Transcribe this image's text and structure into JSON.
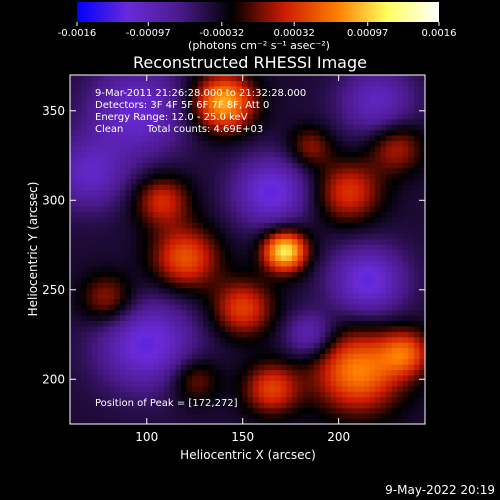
{
  "chart_data": {
    "type": "heatmap",
    "title": "Reconstructed RHESSI Image",
    "xlabel": "Heliocentric X (arcsec)",
    "ylabel": "Heliocentric Y (arcsec)",
    "xlim": [
      60,
      245
    ],
    "ylim": [
      175,
      370
    ],
    "xticks": [
      100,
      150,
      200
    ],
    "yticks": [
      200,
      250,
      300,
      350
    ],
    "grid": false,
    "colorbar": {
      "position": "top",
      "range": [
        -0.0016,
        0.0016
      ],
      "ticks": [
        "-0.0016",
        "-0.00097",
        "-0.00032",
        "0.00032",
        "0.00097",
        "0.0016"
      ],
      "unit": "(photons cm⁻² s⁻¹ asec⁻²)",
      "colormap": [
        "#0000ff",
        "#6a2ad8",
        "#4a1a8a",
        "#000000",
        "#cc1a00",
        "#ff7a00",
        "#ffff60",
        "#ffffff"
      ]
    },
    "annotations": {
      "time": "9-Mar-2011 21:26:28.000 to 21:32:28.000",
      "detectors": "Detectors: 3F 4F 5F 6F 7F 8F, Att 0",
      "energy": "Energy Range: 12.0 - 25.0 keV",
      "method": "Clean",
      "counts": "Total counts: 4.69E+03",
      "peak": "Position of Peak = [172,272]"
    },
    "peak": [
      172,
      272
    ],
    "sources": [
      {
        "x": 172,
        "y": 272,
        "amplitude": 0.00155,
        "sigma": 8
      },
      {
        "x": 140,
        "y": 355,
        "amplitude": 0.0013,
        "sigma": 11
      },
      {
        "x": 210,
        "y": 205,
        "amplitude": 0.0011,
        "sigma": 16
      },
      {
        "x": 235,
        "y": 215,
        "amplitude": 0.0008,
        "sigma": 9
      },
      {
        "x": 120,
        "y": 268,
        "amplitude": 0.0009,
        "sigma": 12
      },
      {
        "x": 150,
        "y": 240,
        "amplitude": 0.0008,
        "sigma": 11
      },
      {
        "x": 165,
        "y": 195,
        "amplitude": 0.0008,
        "sigma": 10
      },
      {
        "x": 108,
        "y": 300,
        "amplitude": 0.0007,
        "sigma": 10
      },
      {
        "x": 205,
        "y": 305,
        "amplitude": 0.00075,
        "sigma": 12
      },
      {
        "x": 230,
        "y": 330,
        "amplitude": 0.0006,
        "sigma": 10
      },
      {
        "x": 80,
        "y": 245,
        "amplitude": 0.0006,
        "sigma": 10
      },
      {
        "x": 125,
        "y": 200,
        "amplitude": 0.0005,
        "sigma": 9
      },
      {
        "x": 185,
        "y": 330,
        "amplitude": 0.0005,
        "sigma": 8
      },
      {
        "x": 95,
        "y": 350,
        "amplitude": -0.0007,
        "sigma": 18
      },
      {
        "x": 100,
        "y": 220,
        "amplitude": -0.0008,
        "sigma": 18
      },
      {
        "x": 165,
        "y": 305,
        "amplitude": -0.0008,
        "sigma": 14
      },
      {
        "x": 215,
        "y": 255,
        "amplitude": -0.0008,
        "sigma": 14
      },
      {
        "x": 220,
        "y": 355,
        "amplitude": -0.0006,
        "sigma": 14
      },
      {
        "x": 185,
        "y": 225,
        "amplitude": -0.0006,
        "sigma": 9
      },
      {
        "x": 70,
        "y": 315,
        "amplitude": -0.0006,
        "sigma": 14
      }
    ],
    "base_level": -0.0004
  },
  "footer": {
    "date": "9-May-2022 20:19"
  }
}
